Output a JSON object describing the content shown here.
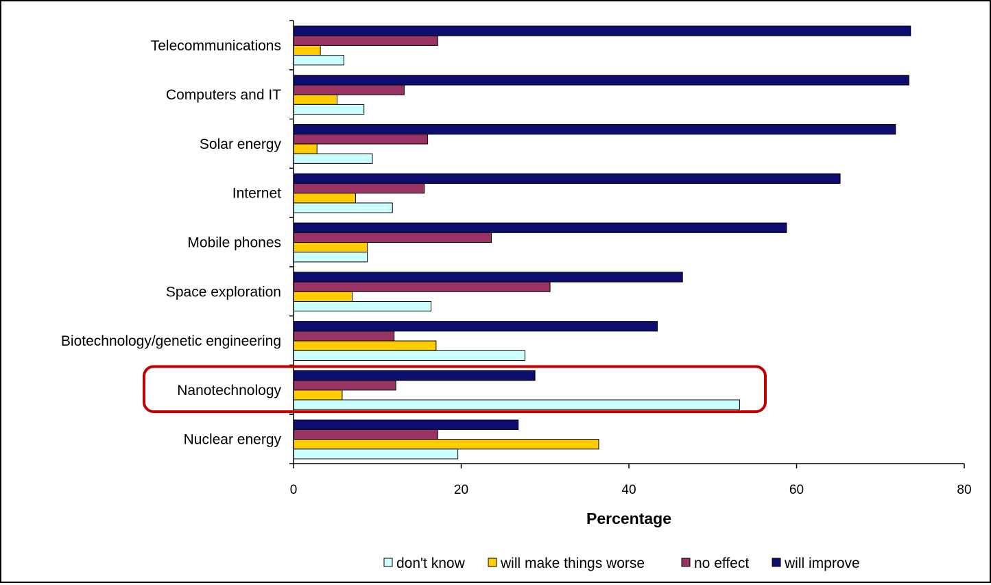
{
  "chart_data": {
    "type": "bar",
    "orientation": "horizontal",
    "xlabel": "Percentage",
    "ylabel": "",
    "xlim": [
      0,
      80
    ],
    "xticks": [
      0,
      20,
      40,
      60,
      80
    ],
    "grid": false,
    "legend_position": "bottom",
    "categories": [
      "Telecommunications",
      "Computers and IT",
      "Solar energy",
      "Internet",
      "Mobile phones",
      "Space exploration",
      "Biotechnology/genetic engineering",
      "Nanotechnology",
      "Nuclear energy"
    ],
    "series": [
      {
        "name": "will improve",
        "color": "#0d0d70",
        "values": [
          73.6,
          73.4,
          71.8,
          65.2,
          58.8,
          46.4,
          43.4,
          28.8,
          26.8
        ]
      },
      {
        "name": "no effect",
        "color": "#993366",
        "values": [
          17.2,
          13.2,
          16.0,
          15.6,
          23.6,
          30.6,
          12.0,
          12.2,
          17.2
        ]
      },
      {
        "name": "will make things worse",
        "color": "#ffcc00",
        "values": [
          3.2,
          5.2,
          2.8,
          7.4,
          8.8,
          7.0,
          17.0,
          5.8,
          36.4
        ]
      },
      {
        "name": "don't know",
        "color": "#ccffff",
        "values": [
          6.0,
          8.4,
          9.4,
          11.8,
          8.8,
          16.4,
          27.6,
          53.2,
          19.6
        ]
      }
    ],
    "legend_order": [
      "don't know",
      "will make things worse",
      "no effect",
      "will improve"
    ],
    "highlight": {
      "category": "Nanotechnology",
      "color": "#c00000"
    }
  }
}
